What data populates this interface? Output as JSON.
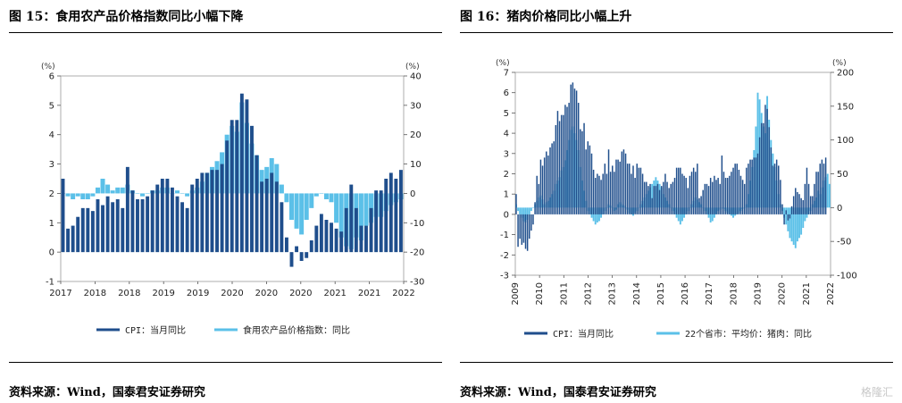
{
  "left": {
    "title": "图 15：食用农产品价格指数同比小幅下降",
    "source": "资料来源：Wind，国泰君安证券研究",
    "left_unit": "(%)",
    "right_unit": "(%)",
    "x_tick_labels": [
      "2017",
      "2018",
      "2018",
      "2019",
      "2019",
      "2020",
      "2020",
      "2020",
      "2021",
      "2021",
      "2022"
    ],
    "left_ticks": [
      "-1",
      "0",
      "1",
      "2",
      "3",
      "4",
      "5",
      "6"
    ],
    "right_ticks": [
      "-30",
      "-20",
      "-10",
      "0",
      "10",
      "20",
      "30",
      "40"
    ],
    "legend": [
      "CPI：当月同比",
      "食用农产品价格指数：同比"
    ]
  },
  "right": {
    "title": "图 16：猪肉价格同比小幅上升",
    "source": "资料来源：Wind，国泰君安证券研究",
    "left_unit": "(%)",
    "right_unit": "(%)",
    "x_tick_labels": [
      "2009",
      "2010",
      "2011",
      "2012",
      "2013",
      "2014",
      "2015",
      "2016",
      "2017",
      "2018",
      "2019",
      "2020",
      "2021",
      "2022"
    ],
    "left_ticks": [
      "-3",
      "-2",
      "-1",
      "0",
      "1",
      "2",
      "3",
      "4",
      "5",
      "6",
      "7"
    ],
    "right_ticks": [
      "-100",
      "-50",
      "0",
      "50",
      "100",
      "150",
      "200"
    ],
    "legend": [
      "CPI：当月同比",
      "22个省市：平均价：猪肉：同比"
    ]
  },
  "watermark": "格隆汇",
  "colors": {
    "cpi": "#1f4e8c",
    "food": "#5bc0e8"
  },
  "chart_data": [
    {
      "type": "bar",
      "title": "图 15：食用农产品价格指数同比小幅下降",
      "x_range": [
        "2017-01",
        "2022-09"
      ],
      "y_left_lim": [
        -1,
        6
      ],
      "y_right_lim": [
        -30,
        40
      ],
      "series": [
        {
          "name": "CPI：当月同比",
          "axis": "left",
          "monthly_values_from_2017_01": [
            2.5,
            0.8,
            0.9,
            1.2,
            1.5,
            1.5,
            1.4,
            1.8,
            1.6,
            1.9,
            1.7,
            1.8,
            1.5,
            2.9,
            2.1,
            1.8,
            1.8,
            1.9,
            2.1,
            2.3,
            2.5,
            2.5,
            2.2,
            1.9,
            1.7,
            1.5,
            2.3,
            2.5,
            2.7,
            2.7,
            2.8,
            2.8,
            3.0,
            3.8,
            4.5,
            4.5,
            5.4,
            5.2,
            4.3,
            3.3,
            2.4,
            2.5,
            2.7,
            2.4,
            1.7,
            0.5,
            -0.5,
            0.2,
            -0.3,
            -0.2,
            0.4,
            0.9,
            1.3,
            1.1,
            1.0,
            0.8,
            0.7,
            1.5,
            2.3,
            1.5,
            0.9,
            0.9,
            1.5,
            2.1,
            2.1,
            2.5,
            2.7,
            2.5,
            2.8
          ]
        },
        {
          "name": "食用农产品价格指数：同比",
          "axis": "right",
          "monthly_values_from_2017_01": [
            0,
            -1,
            -2,
            -1,
            -2,
            -2,
            -1,
            2,
            5,
            3,
            1,
            2,
            2,
            3,
            1,
            0,
            -1,
            0,
            1,
            1,
            2,
            2,
            0,
            1,
            0,
            -1,
            1,
            2,
            4,
            7,
            9,
            11,
            14,
            20,
            23,
            21,
            31,
            24,
            17,
            13,
            8,
            9,
            12,
            10,
            3,
            -3,
            -9,
            -12,
            -14,
            -9,
            -5,
            -1,
            0,
            -2,
            -3,
            -10,
            -15,
            -18,
            -19,
            -15,
            -16,
            -11,
            -10,
            -8,
            -8,
            -6,
            -4,
            -3,
            -2
          ]
        }
      ]
    },
    {
      "type": "bar",
      "title": "图 16：猪肉价格同比小幅上升",
      "x_range": [
        "2009-01",
        "2022-09"
      ],
      "y_left_lim": [
        -3,
        7
      ],
      "y_right_lim": [
        -100,
        200
      ],
      "series": [
        {
          "name": "CPI：当月同比",
          "axis": "left",
          "monthly_values_from_2009_01": [
            1.0,
            -1.6,
            -1.2,
            -1.5,
            -1.4,
            -1.7,
            -1.8,
            -1.2,
            -0.8,
            -0.5,
            0.6,
            1.9,
            1.5,
            2.7,
            2.4,
            2.8,
            3.1,
            2.9,
            3.3,
            3.5,
            3.6,
            4.4,
            5.1,
            4.6,
            4.9,
            4.9,
            5.4,
            5.3,
            5.5,
            6.4,
            6.5,
            6.2,
            6.1,
            5.5,
            4.2,
            4.1,
            4.5,
            3.2,
            3.6,
            3.4,
            3.0,
            2.2,
            1.8,
            2.0,
            1.9,
            1.7,
            2.0,
            2.5,
            2.0,
            3.2,
            2.1,
            2.4,
            2.1,
            2.7,
            2.7,
            2.6,
            3.1,
            3.2,
            3.0,
            2.5,
            2.5,
            2.0,
            2.4,
            1.8,
            2.5,
            2.3,
            2.3,
            2.0,
            1.6,
            1.6,
            1.4,
            1.5,
            0.8,
            1.4,
            1.4,
            1.5,
            1.2,
            1.4,
            1.6,
            2.0,
            1.6,
            1.3,
            1.5,
            1.6,
            1.8,
            2.3,
            2.3,
            2.3,
            2.0,
            1.9,
            1.8,
            1.3,
            1.9,
            2.1,
            2.3,
            2.1,
            2.5,
            0.8,
            0.9,
            1.2,
            1.5,
            1.5,
            1.4,
            1.8,
            1.6,
            1.9,
            1.7,
            1.8,
            1.5,
            2.9,
            2.1,
            1.8,
            1.8,
            1.9,
            2.1,
            2.3,
            2.5,
            2.5,
            2.2,
            1.9,
            1.7,
            1.5,
            2.3,
            2.5,
            2.7,
            2.7,
            2.8,
            2.8,
            3.0,
            3.8,
            4.5,
            4.5,
            5.4,
            5.2,
            4.3,
            3.3,
            2.4,
            2.5,
            2.7,
            2.4,
            1.7,
            0.5,
            -0.5,
            0.2,
            -0.3,
            -0.2,
            0.4,
            0.9,
            1.3,
            1.1,
            1.0,
            0.8,
            0.7,
            1.5,
            2.3,
            1.5,
            0.9,
            0.9,
            1.5,
            2.1,
            2.1,
            2.5,
            2.7,
            2.5,
            2.8
          ]
        },
        {
          "name": "22个省市：平均价：猪肉：同比",
          "axis": "right",
          "monthly_values_from_2009_01": [
            5,
            -5,
            -10,
            -15,
            -20,
            -22,
            -18,
            -10,
            -5,
            0,
            5,
            10,
            15,
            18,
            12,
            5,
            8,
            10,
            15,
            20,
            25,
            35,
            40,
            45,
            55,
            60,
            70,
            85,
            100,
            115,
            120,
            110,
            100,
            85,
            60,
            40,
            25,
            10,
            -5,
            -10,
            -15,
            -20,
            -25,
            -22,
            -20,
            -15,
            -10,
            -5,
            0,
            5,
            3,
            0,
            -5,
            -3,
            5,
            8,
            5,
            3,
            0,
            -3,
            -8,
            -10,
            -12,
            -8,
            -5,
            0,
            5,
            10,
            15,
            20,
            25,
            30,
            35,
            40,
            45,
            40,
            35,
            30,
            20,
            15,
            10,
            5,
            0,
            -5,
            -10,
            -15,
            -20,
            -25,
            -20,
            -15,
            -10,
            -5,
            0,
            5,
            10,
            15,
            12,
            8,
            5,
            0,
            -5,
            -10,
            -15,
            -22,
            -20,
            -15,
            -10,
            -5,
            -3,
            0,
            -2,
            -5,
            -8,
            -10,
            -12,
            -15,
            -12,
            -10,
            -8,
            -5,
            -2,
            0,
            5,
            20,
            40,
            60,
            85,
            120,
            170,
            160,
            140,
            120,
            110,
            165,
            130,
            100,
            80,
            60,
            40,
            20,
            5,
            -5,
            -15,
            -25,
            -35,
            -45,
            -50,
            -55,
            -60,
            -50,
            -45,
            -40,
            -30,
            -20,
            -15,
            -10,
            -5,
            5,
            10,
            15,
            25,
            20,
            30,
            40,
            45,
            50,
            35
          ]
        }
      ]
    }
  ]
}
